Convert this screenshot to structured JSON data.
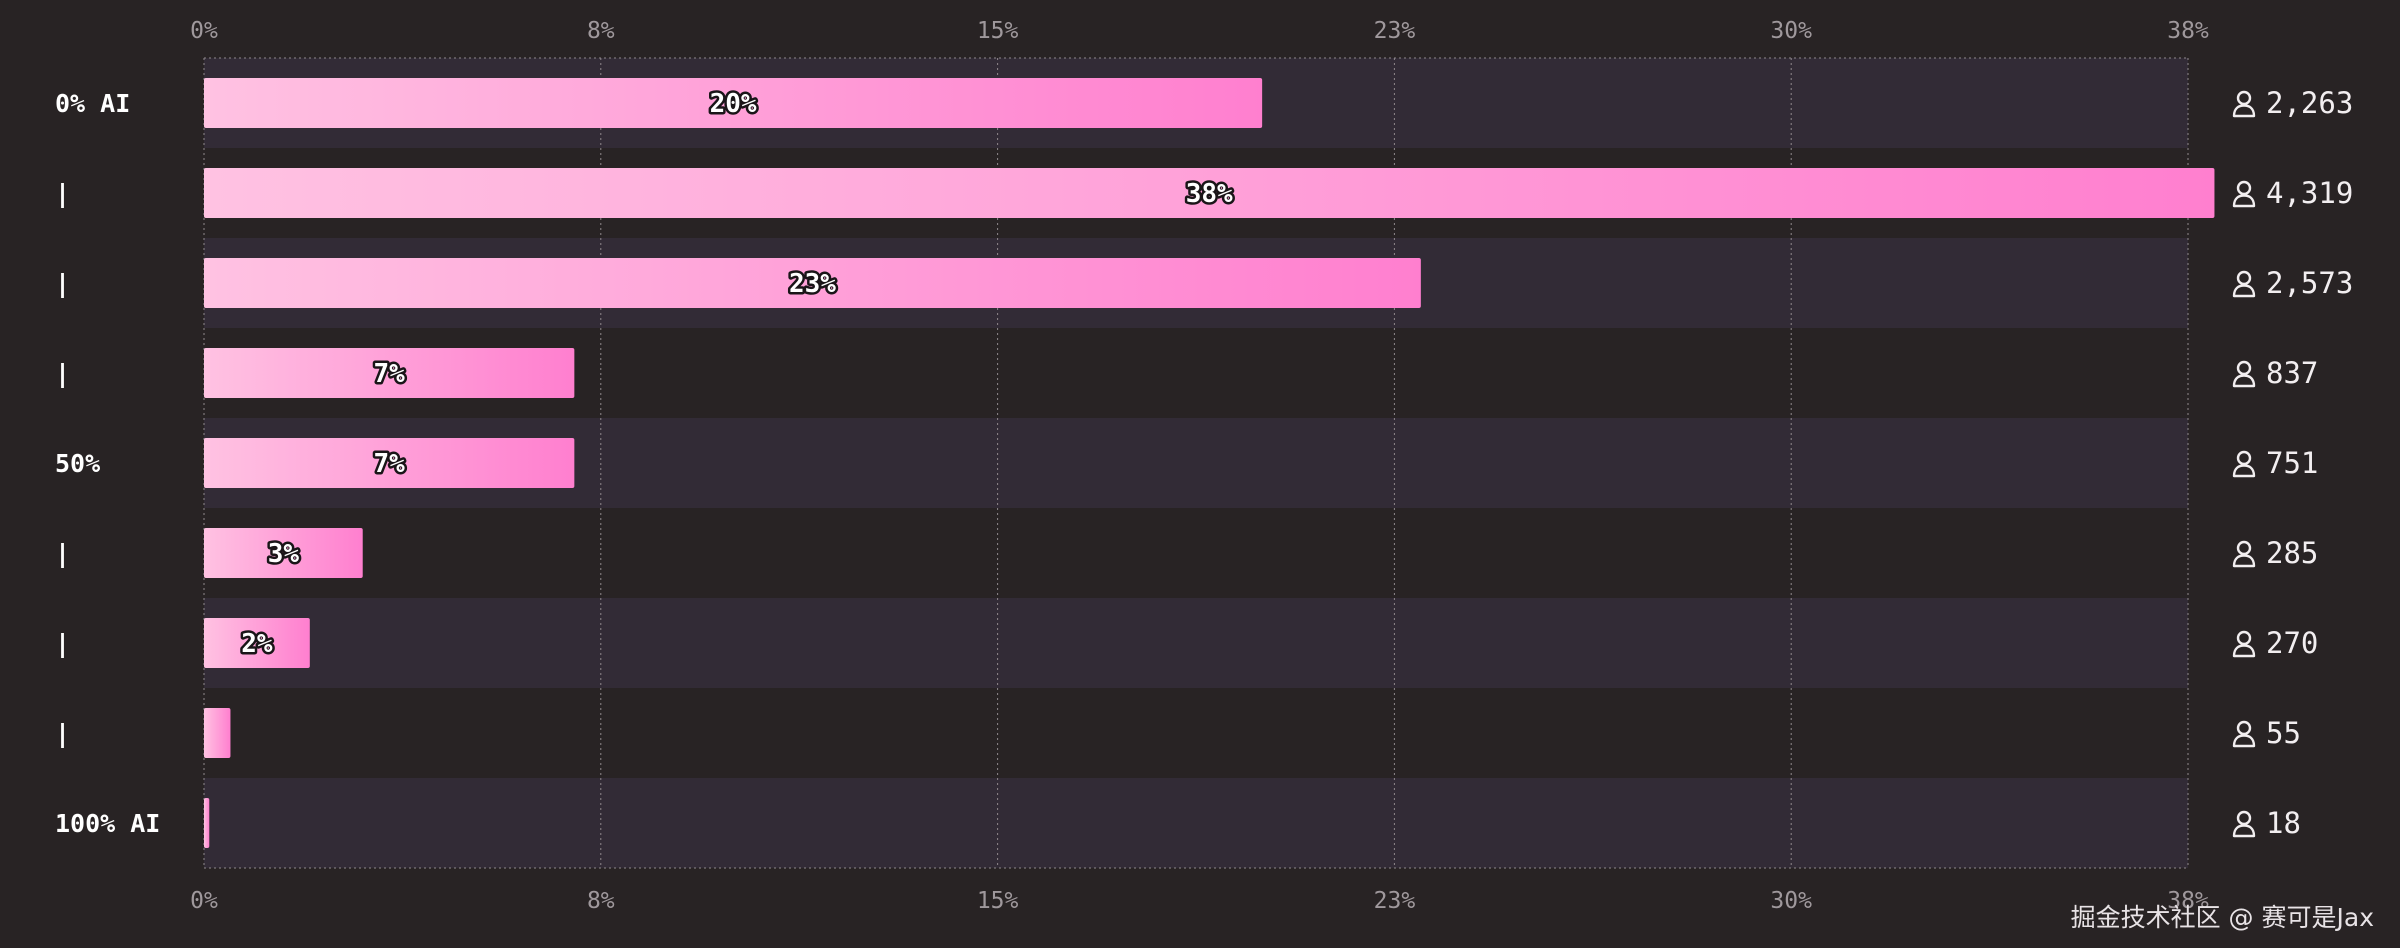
{
  "chart_data": {
    "type": "bar",
    "orientation": "horizontal",
    "categories": [
      "0% AI",
      "|",
      "|",
      "|",
      "50%",
      "|",
      "|",
      "|",
      "100% AI"
    ],
    "values": [
      20,
      38,
      23,
      7,
      7,
      3,
      2,
      0.5,
      0.1
    ],
    "value_labels": [
      "20%",
      "38%",
      "23%",
      "7%",
      "7%",
      "3%",
      "2%",
      "",
      ""
    ],
    "counts": [
      "2,263",
      "4,319",
      "2,573",
      "837",
      "751",
      "285",
      "270",
      "55",
      "18"
    ],
    "x_ticks": [
      0,
      7.5,
      15,
      22.5,
      30,
      37.5
    ],
    "x_tick_labels": [
      "0%",
      "8%",
      "15%",
      "23%",
      "30%",
      "38%"
    ],
    "xlim": [
      0,
      37.5
    ],
    "grid": true,
    "title": "",
    "xlabel": "",
    "ylabel": ""
  },
  "colors": {
    "background": "#282324",
    "band_dark": "#282324",
    "band_light": "#322b36",
    "bar_start": "#ffc2e2",
    "bar_end": "#ff7fcf",
    "category_text": "#ffffff",
    "tick_text": "#9f989c",
    "count_text": "#f2eef0",
    "grid": "#8f888c"
  },
  "icons": {
    "count": "person-icon"
  },
  "watermark": "掘金技术社区 @ 赛可是Jax"
}
